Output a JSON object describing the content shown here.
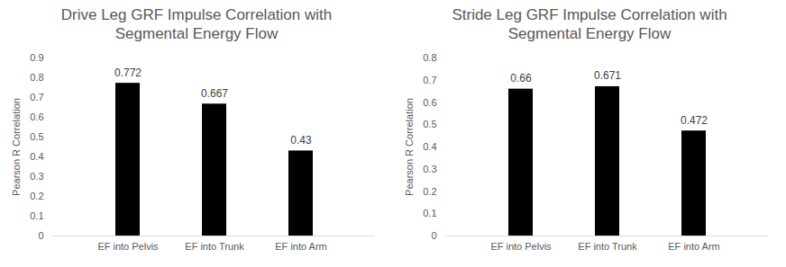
{
  "chart_data": [
    {
      "type": "bar",
      "title": "Drive Leg GRF Impulse Correlation with Segmental Energy Flow",
      "y_label": "Pearson R Correlation",
      "categories": [
        "EF into Pelvis",
        "EF into Trunk",
        "EF into Arm"
      ],
      "values": [
        0.772,
        0.667,
        0.43
      ],
      "color": "#000000",
      "ylim": [
        0,
        0.9
      ],
      "yticks": [
        0,
        0.1,
        0.2,
        0.3,
        0.4,
        0.5,
        0.6,
        0.7,
        0.8,
        0.9
      ],
      "grid": false,
      "data_labels": true
    },
    {
      "type": "bar",
      "title": "Stride Leg GRF Impulse Correlation with Segmental Energy Flow",
      "y_label": "Pearson R Correlation",
      "categories": [
        "EF into Pelvis",
        "EF into Trunk",
        "EF into Arm"
      ],
      "values": [
        0.66,
        0.671,
        0.472
      ],
      "color": "#000000",
      "ylim": [
        0,
        0.8
      ],
      "yticks": [
        0,
        0.1,
        0.2,
        0.3,
        0.4,
        0.5,
        0.6,
        0.7,
        0.8
      ],
      "grid": false,
      "data_labels": true
    }
  ]
}
